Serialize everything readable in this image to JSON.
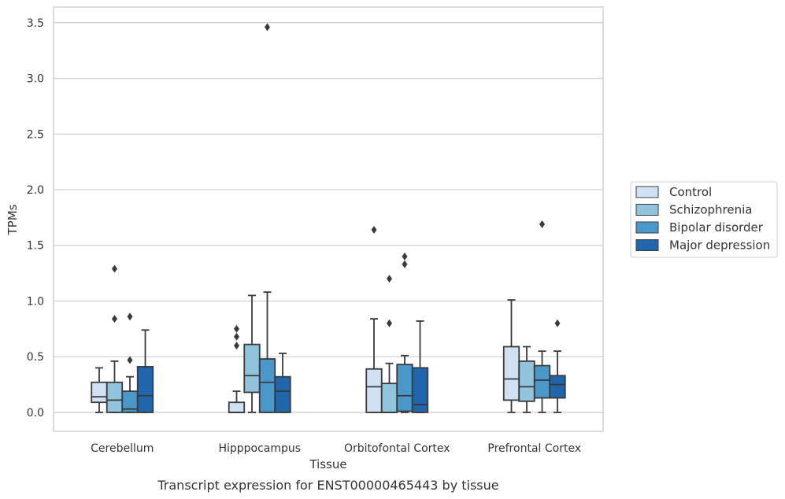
{
  "chart_data": {
    "type": "box",
    "title": "",
    "xlabel": "Tissue",
    "ylabel": "TPMs",
    "caption": "Transcript expression for ENST00000465443 by tissue",
    "ylim": [
      -0.17,
      3.64
    ],
    "yticks": [
      0.0,
      0.5,
      1.0,
      1.5,
      2.0,
      2.5,
      3.0,
      3.5
    ],
    "ytick_labels": [
      "0.0",
      "0.5",
      "1.0",
      "1.5",
      "2.0",
      "2.5",
      "3.0",
      "3.5"
    ],
    "grid": "horizontal",
    "legend_position": "right",
    "categories": [
      "Cerebellum",
      "Hipppocampus",
      "Orbitofontal Cortex",
      "Prefrontal Cortex"
    ],
    "series": [
      {
        "name": "Control",
        "color": "#cfe1f2",
        "boxes": [
          {
            "q1": 0.09,
            "median": 0.14,
            "q3": 0.27,
            "whisker_low": 0.0,
            "whisker_high": 0.4,
            "outliers": []
          },
          {
            "q1": 0.0,
            "median": 0.0,
            "q3": 0.09,
            "whisker_low": 0.0,
            "whisker_high": 0.19,
            "outliers": [
              0.6,
              0.68,
              0.75
            ]
          },
          {
            "q1": 0.0,
            "median": 0.23,
            "q3": 0.39,
            "whisker_low": 0.0,
            "whisker_high": 0.84,
            "outliers": [
              1.64
            ]
          },
          {
            "q1": 0.11,
            "median": 0.3,
            "q3": 0.59,
            "whisker_low": 0.0,
            "whisker_high": 1.01,
            "outliers": []
          }
        ]
      },
      {
        "name": "Schizophrenia",
        "color": "#93c4de",
        "boxes": [
          {
            "q1": 0.0,
            "median": 0.11,
            "q3": 0.27,
            "whisker_low": 0.0,
            "whisker_high": 0.46,
            "outliers": [
              0.84,
              1.29
            ]
          },
          {
            "q1": 0.18,
            "median": 0.33,
            "q3": 0.61,
            "whisker_low": 0.0,
            "whisker_high": 1.05,
            "outliers": []
          },
          {
            "q1": 0.0,
            "median": 0.0,
            "q3": 0.26,
            "whisker_low": 0.0,
            "whisker_high": 0.44,
            "outliers": [
              0.8,
              1.2
            ]
          },
          {
            "q1": 0.1,
            "median": 0.23,
            "q3": 0.46,
            "whisker_low": 0.0,
            "whisker_high": 0.59,
            "outliers": []
          }
        ]
      },
      {
        "name": "Bipolar disorder",
        "color": "#4a98c9",
        "boxes": [
          {
            "q1": 0.0,
            "median": 0.03,
            "q3": 0.19,
            "whisker_low": 0.0,
            "whisker_high": 0.32,
            "outliers": [
              0.47,
              0.86
            ]
          },
          {
            "q1": 0.0,
            "median": 0.27,
            "q3": 0.48,
            "whisker_low": 0.0,
            "whisker_high": 1.08,
            "outliers": [
              3.46
            ]
          },
          {
            "q1": 0.01,
            "median": 0.15,
            "q3": 0.43,
            "whisker_low": 0.0,
            "whisker_high": 0.51,
            "outliers": [
              1.33,
              1.4
            ]
          },
          {
            "q1": 0.13,
            "median": 0.29,
            "q3": 0.42,
            "whisker_low": 0.0,
            "whisker_high": 0.55,
            "outliers": [
              1.69
            ]
          }
        ]
      },
      {
        "name": "Major depression",
        "color": "#2166ac",
        "boxes": [
          {
            "q1": 0.0,
            "median": 0.15,
            "q3": 0.41,
            "whisker_low": 0.0,
            "whisker_high": 0.74,
            "outliers": []
          },
          {
            "q1": 0.0,
            "median": 0.19,
            "q3": 0.32,
            "whisker_low": 0.0,
            "whisker_high": 0.53,
            "outliers": []
          },
          {
            "q1": 0.0,
            "median": 0.07,
            "q3": 0.4,
            "whisker_low": 0.0,
            "whisker_high": 0.82,
            "outliers": []
          },
          {
            "q1": 0.13,
            "median": 0.25,
            "q3": 0.33,
            "whisker_low": 0.0,
            "whisker_high": 0.55,
            "outliers": [
              0.8
            ]
          }
        ]
      }
    ]
  }
}
